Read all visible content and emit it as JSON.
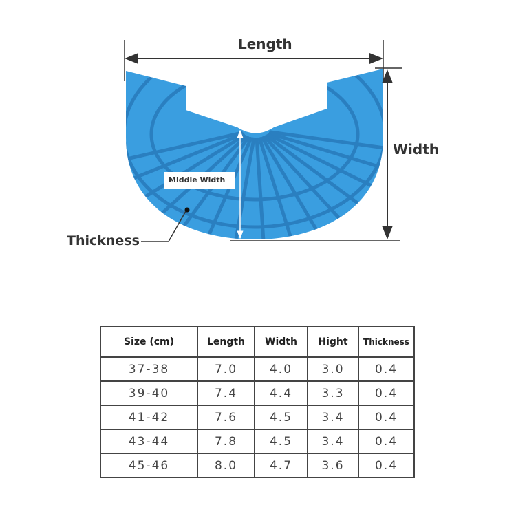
{
  "diagram": {
    "labels": {
      "length": "Length",
      "width": "Width",
      "middle_width": "Middle Width",
      "thickness": "Thickness"
    },
    "colors": {
      "product": "#3a9ee0",
      "groove": "#2a7fc0",
      "lines": "#333333"
    }
  },
  "table": {
    "headers": [
      "Size (cm)",
      "Length",
      "Width",
      "Hight",
      "Thickness"
    ],
    "rows": [
      [
        "37-38",
        "7.0",
        "4.0",
        "3.0",
        "0.4"
      ],
      [
        "39-40",
        "7.4",
        "4.4",
        "3.3",
        "0.4"
      ],
      [
        "41-42",
        "7.6",
        "4.5",
        "3.4",
        "0.4"
      ],
      [
        "43-44",
        "7.8",
        "4.5",
        "3.4",
        "0.4"
      ],
      [
        "45-46",
        "8.0",
        "4.7",
        "3.6",
        "0.4"
      ]
    ]
  }
}
